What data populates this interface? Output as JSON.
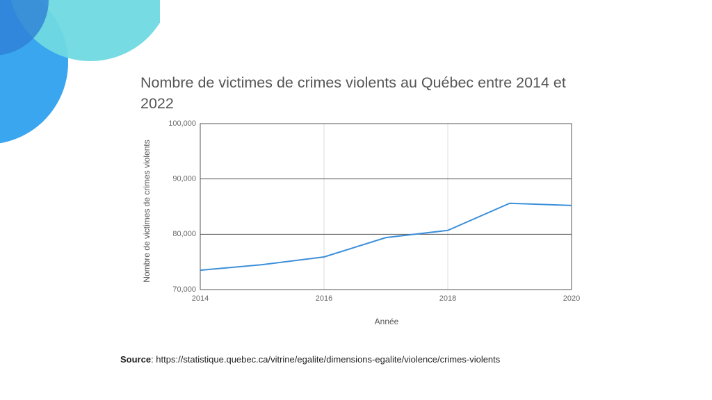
{
  "chart_data": {
    "type": "line",
    "title": "Nombre de victimes de crimes violents au Québec entre 2014 et 2022",
    "x_label": "Année",
    "y_label": "Nombre de victimes de crimes violents",
    "x": [
      2014,
      2015,
      2016,
      2017,
      2018,
      2019,
      2020
    ],
    "series": [
      {
        "color": "#3b8fd9",
        "values": [
          73500,
          74500,
          75900,
          79400,
          80700,
          85600,
          85200
        ]
      }
    ],
    "xlim": [
      2014,
      2020
    ],
    "xticks": [
      2014,
      2016,
      2018,
      2020
    ],
    "ylim": [
      70000,
      100000
    ],
    "yticks": [
      {
        "value": 70000,
        "label": "70,000"
      },
      {
        "value": 80000,
        "label": "80,000"
      },
      {
        "value": 90000,
        "label": "90,000"
      },
      {
        "value": 100000,
        "label": "100,000"
      }
    ],
    "grid": true
  },
  "source": {
    "label": "Source",
    "text": ": https://statistique.quebec.ca/vitrine/egalite/dimensions-egalite/violence/crimes-violents"
  }
}
